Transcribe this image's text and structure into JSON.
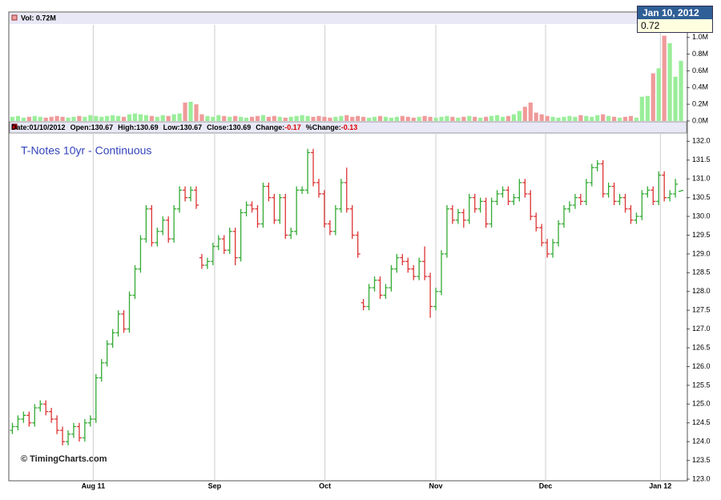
{
  "chart_data": {
    "type": "ohlc",
    "title": "T-Notes 10yr - Continuous",
    "watermark": "© TimingCharts.com",
    "volume_label": "Vol: 0.72M",
    "info": [
      {
        "label": "Date:",
        "value": "01/10/2012"
      },
      {
        "label": "Open:",
        "value": "130.67"
      },
      {
        "label": "High:",
        "value": "130.69"
      },
      {
        "label": "Low:",
        "value": "130.67"
      },
      {
        "label": "Close:",
        "value": "130.69"
      },
      {
        "label": "Change:",
        "value": "-0.17"
      },
      {
        "label": "%Change:",
        "value": "-0.13"
      }
    ],
    "tooltip": {
      "date": "Jan 10, 2012",
      "value": "0.72"
    },
    "up_color": "#33aa33",
    "down_color": "#dd3333",
    "volume_up_color": "#99ee99",
    "volume_down_color": "#f09a9a",
    "grid": "vertical",
    "xlim": [
      -0.5,
      121
    ],
    "xticks": [
      {
        "value": 14.5,
        "label": "Aug 11"
      },
      {
        "value": 36.3,
        "label": "Sep"
      },
      {
        "value": 56.1,
        "label": "Oct"
      },
      {
        "value": 76,
        "label": "Nov"
      },
      {
        "value": 95.7,
        "label": "Dec"
      },
      {
        "value": 116.3,
        "label": "Jan 12"
      }
    ],
    "ylim": [
      123.0,
      132.2
    ],
    "yticks": [
      {
        "value": 123,
        "label": "123.0"
      },
      {
        "value": 123.5,
        "label": "123.5"
      },
      {
        "value": 124,
        "label": "124.0"
      },
      {
        "value": 124.5,
        "label": "124.5"
      },
      {
        "value": 125,
        "label": "125.0"
      },
      {
        "value": 125.5,
        "label": "125.5"
      },
      {
        "value": 126,
        "label": "126.0"
      },
      {
        "value": 126.5,
        "label": "126.5"
      },
      {
        "value": 127,
        "label": "127.0"
      },
      {
        "value": 127.5,
        "label": "127.5"
      },
      {
        "value": 128,
        "label": "128.0"
      },
      {
        "value": 128.5,
        "label": "128.5"
      },
      {
        "value": 129,
        "label": "129.0"
      },
      {
        "value": 129.5,
        "label": "129.5"
      },
      {
        "value": 130,
        "label": "130.0"
      },
      {
        "value": 130.5,
        "label": "130.5"
      },
      {
        "value": 131,
        "label": "131.0"
      },
      {
        "value": 131.5,
        "label": "131.5"
      },
      {
        "value": 132,
        "label": "132.0"
      }
    ],
    "volume_ylim": [
      0,
      1.15
    ],
    "volume_yticks": [
      {
        "value": 0,
        "label": "0.0M"
      },
      {
        "value": 0.2,
        "label": "0.2M"
      },
      {
        "value": 0.4,
        "label": "0.4M"
      },
      {
        "value": 0.6,
        "label": "0.6M"
      },
      {
        "value": 0.8,
        "label": "0.8M"
      },
      {
        "value": 1.0,
        "label": "1.0M"
      }
    ],
    "ohlc": [
      [
        124.3,
        124.5,
        124.2,
        124.4
      ],
      [
        124.4,
        124.7,
        124.3,
        124.6
      ],
      [
        124.6,
        124.8,
        124.5,
        124.7
      ],
      [
        124.7,
        124.8,
        124.4,
        124.5
      ],
      [
        124.5,
        125.0,
        124.4,
        124.9
      ],
      [
        124.9,
        125.1,
        124.8,
        125.0
      ],
      [
        125.0,
        125.1,
        124.7,
        124.8
      ],
      [
        124.8,
        124.9,
        124.5,
        124.6
      ],
      [
        124.6,
        124.7,
        124.2,
        124.3
      ],
      [
        124.3,
        124.4,
        123.9,
        124.0
      ],
      [
        124.0,
        124.3,
        123.9,
        124.2
      ],
      [
        124.2,
        124.5,
        124.1,
        124.4
      ],
      [
        124.4,
        124.5,
        124.0,
        124.1
      ],
      [
        124.1,
        124.6,
        124.0,
        124.5
      ],
      [
        124.5,
        124.7,
        124.4,
        124.6
      ],
      [
        124.6,
        125.8,
        124.5,
        125.7
      ],
      [
        125.7,
        126.2,
        125.6,
        126.1
      ],
      [
        126.1,
        126.7,
        126.0,
        126.6
      ],
      [
        126.6,
        127.0,
        126.5,
        126.9
      ],
      [
        126.9,
        127.5,
        126.8,
        127.4
      ],
      [
        127.4,
        127.5,
        126.9,
        127.0
      ],
      [
        127.0,
        128.0,
        126.9,
        127.9
      ],
      [
        127.9,
        128.7,
        127.8,
        128.6
      ],
      [
        128.6,
        129.5,
        128.5,
        129.4
      ],
      [
        129.4,
        130.3,
        129.3,
        130.2
      ],
      [
        130.2,
        130.3,
        129.2,
        129.3
      ],
      [
        129.3,
        129.7,
        129.2,
        129.6
      ],
      [
        129.6,
        130.0,
        129.5,
        129.9
      ],
      [
        129.9,
        130.0,
        129.3,
        129.4
      ],
      [
        129.4,
        130.3,
        129.3,
        130.2
      ],
      [
        130.2,
        130.8,
        130.1,
        130.7
      ],
      [
        130.7,
        130.8,
        130.4,
        130.5
      ],
      [
        130.5,
        130.8,
        130.4,
        130.7
      ],
      [
        130.7,
        130.8,
        130.2,
        130.3
      ],
      [
        128.9,
        129.0,
        128.6,
        128.7
      ],
      [
        128.7,
        128.9,
        128.6,
        128.8
      ],
      [
        128.8,
        129.3,
        128.7,
        129.2
      ],
      [
        129.2,
        129.5,
        129.1,
        129.4
      ],
      [
        129.4,
        129.5,
        129.0,
        129.1
      ],
      [
        129.1,
        129.7,
        129.0,
        129.6
      ],
      [
        129.6,
        129.7,
        128.7,
        128.9
      ],
      [
        128.9,
        130.2,
        128.8,
        130.1
      ],
      [
        130.1,
        130.4,
        130.0,
        130.3
      ],
      [
        130.3,
        130.4,
        130.1,
        130.2
      ],
      [
        130.2,
        130.3,
        129.7,
        129.8
      ],
      [
        129.8,
        130.9,
        129.7,
        130.8
      ],
      [
        130.8,
        130.9,
        130.4,
        130.5
      ],
      [
        130.5,
        130.6,
        129.8,
        129.9
      ],
      [
        129.9,
        130.6,
        129.8,
        130.5
      ],
      [
        130.5,
        130.6,
        129.4,
        129.5
      ],
      [
        129.5,
        129.7,
        129.4,
        129.6
      ],
      [
        129.6,
        130.8,
        129.5,
        130.7
      ],
      [
        130.7,
        130.8,
        130.6,
        130.7
      ],
      [
        130.7,
        131.8,
        130.6,
        131.7
      ],
      [
        131.7,
        131.8,
        130.8,
        130.9
      ],
      [
        130.9,
        131.0,
        130.5,
        130.6
      ],
      [
        130.6,
        130.7,
        129.7,
        129.8
      ],
      [
        129.8,
        129.9,
        129.5,
        129.6
      ],
      [
        129.6,
        130.3,
        129.5,
        130.2
      ],
      [
        130.2,
        131.0,
        130.1,
        130.9
      ],
      [
        130.9,
        131.3,
        130.1,
        130.2
      ],
      [
        130.2,
        130.3,
        129.4,
        129.5
      ],
      [
        129.5,
        129.6,
        128.9,
        129.0
      ],
      [
        127.7,
        127.8,
        127.5,
        127.6
      ],
      [
        127.6,
        128.2,
        127.5,
        128.1
      ],
      [
        128.1,
        128.4,
        128.0,
        128.3
      ],
      [
        128.3,
        128.4,
        127.8,
        127.9
      ],
      [
        127.9,
        128.2,
        127.8,
        128.1
      ],
      [
        128.1,
        128.7,
        128.0,
        128.6
      ],
      [
        128.6,
        129.0,
        128.5,
        128.9
      ],
      [
        128.9,
        129.0,
        128.7,
        128.8
      ],
      [
        128.8,
        128.9,
        128.5,
        128.6
      ],
      [
        128.6,
        128.7,
        128.3,
        128.4
      ],
      [
        128.4,
        128.9,
        128.3,
        128.8
      ],
      [
        128.8,
        129.2,
        128.3,
        128.4
      ],
      [
        128.4,
        128.5,
        127.3,
        127.6
      ],
      [
        127.6,
        128.1,
        127.5,
        128.0
      ],
      [
        128.0,
        129.1,
        127.9,
        129.0
      ],
      [
        129.0,
        130.3,
        128.9,
        130.2
      ],
      [
        130.2,
        130.3,
        129.8,
        129.9
      ],
      [
        129.9,
        130.2,
        129.8,
        130.1
      ],
      [
        130.1,
        130.2,
        129.7,
        129.9
      ],
      [
        129.9,
        130.6,
        129.8,
        130.5
      ],
      [
        130.5,
        130.6,
        130.1,
        130.2
      ],
      [
        130.2,
        130.5,
        130.1,
        130.4
      ],
      [
        130.4,
        130.5,
        129.7,
        129.8
      ],
      [
        129.8,
        130.5,
        129.7,
        130.4
      ],
      [
        130.4,
        130.7,
        130.3,
        130.6
      ],
      [
        130.6,
        130.8,
        130.5,
        130.7
      ],
      [
        130.7,
        130.8,
        130.3,
        130.4
      ],
      [
        130.4,
        130.6,
        130.3,
        130.5
      ],
      [
        130.5,
        131.0,
        130.4,
        130.9
      ],
      [
        130.9,
        131.0,
        130.5,
        130.6
      ],
      [
        130.6,
        130.7,
        129.9,
        130.0
      ],
      [
        130.0,
        130.1,
        129.6,
        129.7
      ],
      [
        129.7,
        129.8,
        129.2,
        129.3
      ],
      [
        129.3,
        129.4,
        128.9,
        129.0
      ],
      [
        129.0,
        129.4,
        128.9,
        129.3
      ],
      [
        129.3,
        129.9,
        129.2,
        129.8
      ],
      [
        129.8,
        130.3,
        129.7,
        130.2
      ],
      [
        130.2,
        130.4,
        130.1,
        130.3
      ],
      [
        130.3,
        130.6,
        130.2,
        130.5
      ],
      [
        130.5,
        130.6,
        130.3,
        130.4
      ],
      [
        130.4,
        131.0,
        130.3,
        130.9
      ],
      [
        130.9,
        131.4,
        130.8,
        131.3
      ],
      [
        131.3,
        131.5,
        131.2,
        131.4
      ],
      [
        131.4,
        131.5,
        130.5,
        130.6
      ],
      [
        130.6,
        130.9,
        130.5,
        130.8
      ],
      [
        130.8,
        130.9,
        130.3,
        130.4
      ],
      [
        130.4,
        130.6,
        130.3,
        130.5
      ],
      [
        130.5,
        130.6,
        130.1,
        130.2
      ],
      [
        130.2,
        130.3,
        129.8,
        129.9
      ],
      [
        129.9,
        130.1,
        129.8,
        130.0
      ],
      [
        130.0,
        130.7,
        129.9,
        130.6
      ],
      [
        130.6,
        130.8,
        130.5,
        130.7
      ],
      [
        130.7,
        130.8,
        130.3,
        130.4
      ],
      [
        130.4,
        131.2,
        130.3,
        131.1
      ],
      [
        131.1,
        131.2,
        130.4,
        130.5
      ],
      [
        130.5,
        130.7,
        130.4,
        130.6
      ],
      [
        130.6,
        131.0,
        130.5,
        130.86
      ],
      [
        130.67,
        130.69,
        130.67,
        130.69
      ]
    ],
    "volume": [
      0.05,
      0.06,
      0.04,
      0.05,
      0.06,
      0.05,
      0.04,
      0.05,
      0.06,
      0.05,
      0.04,
      0.05,
      0.06,
      0.05,
      0.07,
      0.06,
      0.05,
      0.06,
      0.07,
      0.06,
      0.05,
      0.08,
      0.09,
      0.08,
      0.07,
      0.06,
      0.05,
      0.07,
      0.06,
      0.08,
      0.09,
      0.22,
      0.23,
      0.2,
      0.08,
      0.06,
      0.05,
      0.07,
      0.06,
      0.05,
      0.06,
      0.05,
      0.04,
      0.05,
      0.06,
      0.07,
      0.05,
      0.06,
      0.05,
      0.04,
      0.05,
      0.06,
      0.07,
      0.06,
      0.05,
      0.06,
      0.05,
      0.04,
      0.05,
      0.06,
      0.07,
      0.05,
      0.06,
      0.05,
      0.04,
      0.05,
      0.06,
      0.05,
      0.04,
      0.05,
      0.06,
      0.05,
      0.04,
      0.05,
      0.06,
      0.05,
      0.04,
      0.05,
      0.06,
      0.05,
      0.04,
      0.05,
      0.06,
      0.05,
      0.04,
      0.05,
      0.06,
      0.07,
      0.05,
      0.06,
      0.08,
      0.12,
      0.17,
      0.22,
      0.1,
      0.08,
      0.06,
      0.05,
      0.04,
      0.05,
      0.06,
      0.05,
      0.07,
      0.06,
      0.05,
      0.07,
      0.08,
      0.06,
      0.05,
      0.04,
      0.05,
      0.06,
      0.04,
      0.29,
      0.3,
      0.57,
      0.63,
      1.02,
      0.93,
      0.53,
      0.72
    ]
  }
}
